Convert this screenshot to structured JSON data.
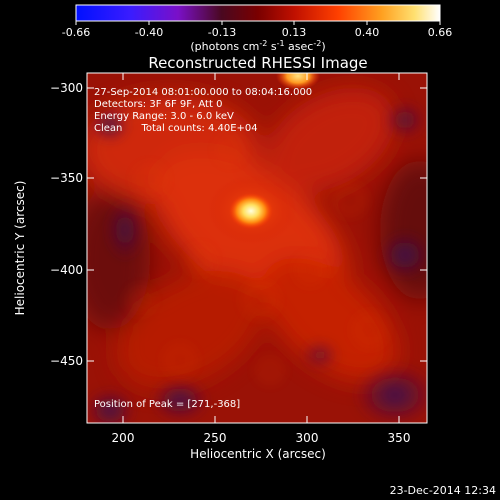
{
  "colorbar": {
    "ticks": [
      "-0.66",
      "-0.40",
      "-0.13",
      "0.13",
      "0.40",
      "0.66"
    ],
    "units_prefix": "(photons cm",
    "units_exp1": "-2",
    "units_mid": " s",
    "units_exp2": "-1",
    "units_mid2": " asec",
    "units_exp3": "-2",
    "units_suffix": ")"
  },
  "image": {
    "title": "Reconstructed RHESSI Image",
    "annotations": [
      "27-Sep-2014 08:01:00.000 to 08:04:16.000",
      "Detectors: 3F 6F 9F, Att 0",
      "Energy Range: 3.0 - 6.0 keV",
      "Clean      Total counts: 4.40E+04"
    ],
    "peak_text": "Position of Peak = [271,-368]",
    "x_ticks": [
      "200",
      "250",
      "300",
      "350"
    ],
    "y_ticks": [
      "−300",
      "−350",
      "−400",
      "−450"
    ],
    "xlabel": "Heliocentric X (arcsec)",
    "ylabel": "Heliocentric Y (arcsec)"
  },
  "footer": {
    "date": "23-Dec-2014 12:34"
  }
}
